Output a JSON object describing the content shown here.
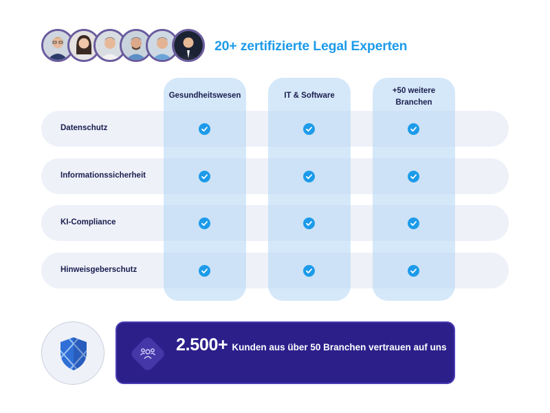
{
  "header": {
    "headline": "20+ zertifizierte Legal Experten",
    "avatars": [
      {
        "icon": "person-avatar-1"
      },
      {
        "icon": "person-avatar-2"
      },
      {
        "icon": "person-avatar-3"
      },
      {
        "icon": "person-avatar-4"
      },
      {
        "icon": "person-avatar-5"
      },
      {
        "icon": "person-avatar-6"
      }
    ]
  },
  "matrix": {
    "columns": [
      {
        "label": "Gesundheitswesen"
      },
      {
        "label": "IT & Software"
      },
      {
        "label": "+50 weitere Branchen"
      }
    ],
    "rows": [
      {
        "label": "Datenschutz",
        "checks": [
          true,
          true,
          true
        ]
      },
      {
        "label": "Informationssicherheit",
        "checks": [
          true,
          true,
          true
        ]
      },
      {
        "label": "KI-Compliance",
        "checks": [
          true,
          true,
          true
        ]
      },
      {
        "label": "Hinweisgeberschutz",
        "checks": [
          true,
          true,
          true
        ]
      }
    ],
    "check_color": "#1d9bea"
  },
  "banner": {
    "count": "2.500+",
    "text": "Kunden  aus über 50 Branchen vertrauen auf uns",
    "background": "#2c1f8a",
    "icon": "users-group-icon"
  },
  "badge": {
    "icon": "shield-icon"
  },
  "colors": {
    "accent": "#1e9be9",
    "row_band": "#eef1f8",
    "column_band": "#b2d6f4"
  }
}
